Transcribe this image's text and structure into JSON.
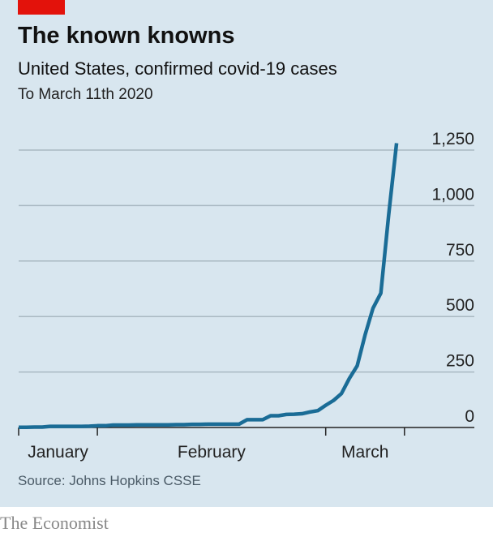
{
  "header": {
    "title": "The known knowns",
    "subtitle": "United States, confirmed covid-19 cases",
    "note": "To March 11th 2020"
  },
  "footer": {
    "source": "Source: Johns Hopkins CSSE",
    "brand": "The Economist"
  },
  "colors": {
    "line": "#1a6c96",
    "background": "#d8e6ef",
    "accent": "#e3120b"
  },
  "chart_data": {
    "type": "line",
    "title": "The known knowns",
    "xlabel": "",
    "ylabel": "",
    "x_unit": "days since January 22nd 2020",
    "ylim": [
      0,
      1250
    ],
    "yticks": [
      0,
      250,
      500,
      750,
      1000,
      1250
    ],
    "ytick_labels": [
      "0",
      "250",
      "500",
      "750",
      "1,000",
      "1,250"
    ],
    "xticks": [
      0,
      10,
      39,
      49
    ],
    "xlabels": [
      {
        "label": "January",
        "at": 5
      },
      {
        "label": "February",
        "at": 24.5
      },
      {
        "label": "March",
        "at": 44
      }
    ],
    "series": [
      {
        "name": "Confirmed cases",
        "x": [
          0,
          1,
          2,
          3,
          4,
          5,
          6,
          7,
          8,
          9,
          10,
          11,
          12,
          13,
          14,
          15,
          16,
          17,
          18,
          19,
          20,
          21,
          22,
          23,
          24,
          25,
          26,
          27,
          28,
          29,
          30,
          31,
          32,
          33,
          34,
          35,
          36,
          37,
          38,
          39,
          40,
          41,
          42,
          43,
          44,
          45,
          46,
          47,
          48,
          49
        ],
        "values": [
          1,
          1,
          2,
          2,
          5,
          5,
          5,
          5,
          5,
          6,
          8,
          8,
          11,
          11,
          11,
          12,
          12,
          12,
          12,
          12,
          13,
          13,
          14,
          14,
          15,
          15,
          15,
          15,
          15,
          35,
          35,
          35,
          53,
          53,
          59,
          60,
          62,
          70,
          76,
          100,
          122,
          153,
          221,
          278,
          417,
          537,
          605,
          959,
          1281,
          1281
        ]
      }
    ]
  }
}
